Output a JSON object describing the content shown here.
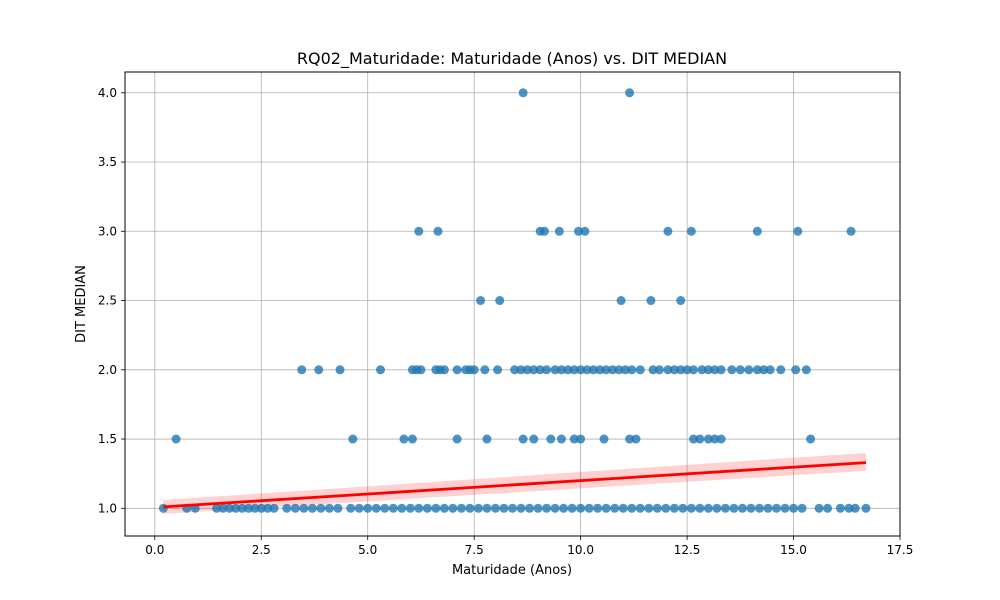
{
  "chart_data": {
    "type": "scatter",
    "title": "RQ02_Maturidade: Maturidade (Anos) vs. DIT MEDIAN",
    "xlabel": "Maturidade (Anos)",
    "ylabel": "DIT MEDIAN",
    "xlim": [
      -0.7,
      17.5
    ],
    "ylim": [
      0.8,
      4.15
    ],
    "xticks": [
      0.0,
      2.5,
      5.0,
      7.5,
      10.0,
      12.5,
      15.0,
      17.5
    ],
    "xtick_labels": [
      "0.0",
      "2.5",
      "5.0",
      "7.5",
      "10.0",
      "12.5",
      "15.0",
      "17.5"
    ],
    "yticks": [
      1.0,
      1.5,
      2.0,
      2.5,
      3.0,
      3.5,
      4.0
    ],
    "ytick_labels": [
      "1.0",
      "1.5",
      "2.0",
      "2.5",
      "3.0",
      "3.5",
      "4.0"
    ],
    "grid": true,
    "colors": {
      "points": "#1f77b4",
      "regression_line": "#ff0000",
      "confidence_band": "#ff0000"
    },
    "regression": {
      "x": [
        0.2,
        16.7
      ],
      "y": [
        1.01,
        1.33
      ],
      "ci_lower": [
        0.96,
        1.27
      ],
      "ci_upper": [
        1.06,
        1.4
      ]
    },
    "points": [
      {
        "x": 8.65,
        "y": 4.0
      },
      {
        "x": 11.15,
        "y": 4.0
      },
      {
        "x": 6.2,
        "y": 3.0
      },
      {
        "x": 6.65,
        "y": 3.0
      },
      {
        "x": 9.05,
        "y": 3.0
      },
      {
        "x": 9.15,
        "y": 3.0
      },
      {
        "x": 9.5,
        "y": 3.0
      },
      {
        "x": 9.95,
        "y": 3.0
      },
      {
        "x": 10.1,
        "y": 3.0
      },
      {
        "x": 12.05,
        "y": 3.0
      },
      {
        "x": 12.6,
        "y": 3.0
      },
      {
        "x": 14.15,
        "y": 3.0
      },
      {
        "x": 15.1,
        "y": 3.0
      },
      {
        "x": 16.35,
        "y": 3.0
      },
      {
        "x": 7.65,
        "y": 2.5
      },
      {
        "x": 8.1,
        "y": 2.5
      },
      {
        "x": 10.95,
        "y": 2.5
      },
      {
        "x": 11.65,
        "y": 2.5
      },
      {
        "x": 12.35,
        "y": 2.5
      },
      {
        "x": 3.45,
        "y": 2.0
      },
      {
        "x": 3.85,
        "y": 2.0
      },
      {
        "x": 4.35,
        "y": 2.0
      },
      {
        "x": 5.3,
        "y": 2.0
      },
      {
        "x": 6.05,
        "y": 2.0
      },
      {
        "x": 6.15,
        "y": 2.0
      },
      {
        "x": 6.25,
        "y": 2.0
      },
      {
        "x": 6.6,
        "y": 2.0
      },
      {
        "x": 6.7,
        "y": 2.0
      },
      {
        "x": 6.8,
        "y": 2.0
      },
      {
        "x": 7.1,
        "y": 2.0
      },
      {
        "x": 7.3,
        "y": 2.0
      },
      {
        "x": 7.4,
        "y": 2.0
      },
      {
        "x": 7.5,
        "y": 2.0
      },
      {
        "x": 7.75,
        "y": 2.0
      },
      {
        "x": 8.05,
        "y": 2.0
      },
      {
        "x": 8.45,
        "y": 2.0
      },
      {
        "x": 8.6,
        "y": 2.0
      },
      {
        "x": 8.75,
        "y": 2.0
      },
      {
        "x": 8.9,
        "y": 2.0
      },
      {
        "x": 9.05,
        "y": 2.0
      },
      {
        "x": 9.2,
        "y": 2.0
      },
      {
        "x": 9.4,
        "y": 2.0
      },
      {
        "x": 9.55,
        "y": 2.0
      },
      {
        "x": 9.7,
        "y": 2.0
      },
      {
        "x": 9.85,
        "y": 2.0
      },
      {
        "x": 10.0,
        "y": 2.0
      },
      {
        "x": 10.15,
        "y": 2.0
      },
      {
        "x": 10.3,
        "y": 2.0
      },
      {
        "x": 10.45,
        "y": 2.0
      },
      {
        "x": 10.6,
        "y": 2.0
      },
      {
        "x": 10.75,
        "y": 2.0
      },
      {
        "x": 10.9,
        "y": 2.0
      },
      {
        "x": 11.05,
        "y": 2.0
      },
      {
        "x": 11.2,
        "y": 2.0
      },
      {
        "x": 11.4,
        "y": 2.0
      },
      {
        "x": 11.7,
        "y": 2.0
      },
      {
        "x": 11.85,
        "y": 2.0
      },
      {
        "x": 12.05,
        "y": 2.0
      },
      {
        "x": 12.2,
        "y": 2.0
      },
      {
        "x": 12.35,
        "y": 2.0
      },
      {
        "x": 12.5,
        "y": 2.0
      },
      {
        "x": 12.65,
        "y": 2.0
      },
      {
        "x": 12.85,
        "y": 2.0
      },
      {
        "x": 13.0,
        "y": 2.0
      },
      {
        "x": 13.15,
        "y": 2.0
      },
      {
        "x": 13.3,
        "y": 2.0
      },
      {
        "x": 13.55,
        "y": 2.0
      },
      {
        "x": 13.75,
        "y": 2.0
      },
      {
        "x": 13.95,
        "y": 2.0
      },
      {
        "x": 14.15,
        "y": 2.0
      },
      {
        "x": 14.3,
        "y": 2.0
      },
      {
        "x": 14.45,
        "y": 2.0
      },
      {
        "x": 14.7,
        "y": 2.0
      },
      {
        "x": 15.05,
        "y": 2.0
      },
      {
        "x": 15.3,
        "y": 2.0
      },
      {
        "x": 0.5,
        "y": 1.5
      },
      {
        "x": 4.65,
        "y": 1.5
      },
      {
        "x": 5.85,
        "y": 1.5
      },
      {
        "x": 6.05,
        "y": 1.5
      },
      {
        "x": 7.1,
        "y": 1.5
      },
      {
        "x": 7.8,
        "y": 1.5
      },
      {
        "x": 8.65,
        "y": 1.5
      },
      {
        "x": 8.9,
        "y": 1.5
      },
      {
        "x": 9.3,
        "y": 1.5
      },
      {
        "x": 9.55,
        "y": 1.5
      },
      {
        "x": 9.85,
        "y": 1.5
      },
      {
        "x": 10.0,
        "y": 1.5
      },
      {
        "x": 10.55,
        "y": 1.5
      },
      {
        "x": 11.15,
        "y": 1.5
      },
      {
        "x": 11.3,
        "y": 1.5
      },
      {
        "x": 12.65,
        "y": 1.5
      },
      {
        "x": 12.8,
        "y": 1.5
      },
      {
        "x": 13.0,
        "y": 1.5
      },
      {
        "x": 13.15,
        "y": 1.5
      },
      {
        "x": 13.3,
        "y": 1.5
      },
      {
        "x": 15.4,
        "y": 1.5
      },
      {
        "x": 0.2,
        "y": 1.0
      },
      {
        "x": 0.75,
        "y": 1.0
      },
      {
        "x": 0.95,
        "y": 1.0
      },
      {
        "x": 1.45,
        "y": 1.0
      },
      {
        "x": 1.6,
        "y": 1.0
      },
      {
        "x": 1.75,
        "y": 1.0
      },
      {
        "x": 1.9,
        "y": 1.0
      },
      {
        "x": 2.05,
        "y": 1.0
      },
      {
        "x": 2.2,
        "y": 1.0
      },
      {
        "x": 2.35,
        "y": 1.0
      },
      {
        "x": 2.5,
        "y": 1.0
      },
      {
        "x": 2.65,
        "y": 1.0
      },
      {
        "x": 2.8,
        "y": 1.0
      },
      {
        "x": 3.1,
        "y": 1.0
      },
      {
        "x": 3.3,
        "y": 1.0
      },
      {
        "x": 3.5,
        "y": 1.0
      },
      {
        "x": 3.7,
        "y": 1.0
      },
      {
        "x": 3.9,
        "y": 1.0
      },
      {
        "x": 4.1,
        "y": 1.0
      },
      {
        "x": 4.3,
        "y": 1.0
      },
      {
        "x": 4.6,
        "y": 1.0
      },
      {
        "x": 4.8,
        "y": 1.0
      },
      {
        "x": 5.0,
        "y": 1.0
      },
      {
        "x": 5.2,
        "y": 1.0
      },
      {
        "x": 5.4,
        "y": 1.0
      },
      {
        "x": 5.6,
        "y": 1.0
      },
      {
        "x": 5.8,
        "y": 1.0
      },
      {
        "x": 6.0,
        "y": 1.0
      },
      {
        "x": 6.2,
        "y": 1.0
      },
      {
        "x": 6.4,
        "y": 1.0
      },
      {
        "x": 6.6,
        "y": 1.0
      },
      {
        "x": 6.8,
        "y": 1.0
      },
      {
        "x": 7.0,
        "y": 1.0
      },
      {
        "x": 7.2,
        "y": 1.0
      },
      {
        "x": 7.4,
        "y": 1.0
      },
      {
        "x": 7.6,
        "y": 1.0
      },
      {
        "x": 7.8,
        "y": 1.0
      },
      {
        "x": 8.0,
        "y": 1.0
      },
      {
        "x": 8.2,
        "y": 1.0
      },
      {
        "x": 8.4,
        "y": 1.0
      },
      {
        "x": 8.6,
        "y": 1.0
      },
      {
        "x": 8.8,
        "y": 1.0
      },
      {
        "x": 9.0,
        "y": 1.0
      },
      {
        "x": 9.2,
        "y": 1.0
      },
      {
        "x": 9.4,
        "y": 1.0
      },
      {
        "x": 9.6,
        "y": 1.0
      },
      {
        "x": 9.8,
        "y": 1.0
      },
      {
        "x": 10.0,
        "y": 1.0
      },
      {
        "x": 10.2,
        "y": 1.0
      },
      {
        "x": 10.4,
        "y": 1.0
      },
      {
        "x": 10.6,
        "y": 1.0
      },
      {
        "x": 10.8,
        "y": 1.0
      },
      {
        "x": 11.0,
        "y": 1.0
      },
      {
        "x": 11.2,
        "y": 1.0
      },
      {
        "x": 11.4,
        "y": 1.0
      },
      {
        "x": 11.6,
        "y": 1.0
      },
      {
        "x": 11.8,
        "y": 1.0
      },
      {
        "x": 12.0,
        "y": 1.0
      },
      {
        "x": 12.2,
        "y": 1.0
      },
      {
        "x": 12.4,
        "y": 1.0
      },
      {
        "x": 12.6,
        "y": 1.0
      },
      {
        "x": 12.8,
        "y": 1.0
      },
      {
        "x": 13.0,
        "y": 1.0
      },
      {
        "x": 13.2,
        "y": 1.0
      },
      {
        "x": 13.4,
        "y": 1.0
      },
      {
        "x": 13.6,
        "y": 1.0
      },
      {
        "x": 13.8,
        "y": 1.0
      },
      {
        "x": 14.0,
        "y": 1.0
      },
      {
        "x": 14.2,
        "y": 1.0
      },
      {
        "x": 14.4,
        "y": 1.0
      },
      {
        "x": 14.6,
        "y": 1.0
      },
      {
        "x": 14.8,
        "y": 1.0
      },
      {
        "x": 15.0,
        "y": 1.0
      },
      {
        "x": 15.2,
        "y": 1.0
      },
      {
        "x": 15.6,
        "y": 1.0
      },
      {
        "x": 15.8,
        "y": 1.0
      },
      {
        "x": 16.1,
        "y": 1.0
      },
      {
        "x": 16.3,
        "y": 1.0
      },
      {
        "x": 16.45,
        "y": 1.0
      },
      {
        "x": 16.7,
        "y": 1.0
      }
    ]
  }
}
